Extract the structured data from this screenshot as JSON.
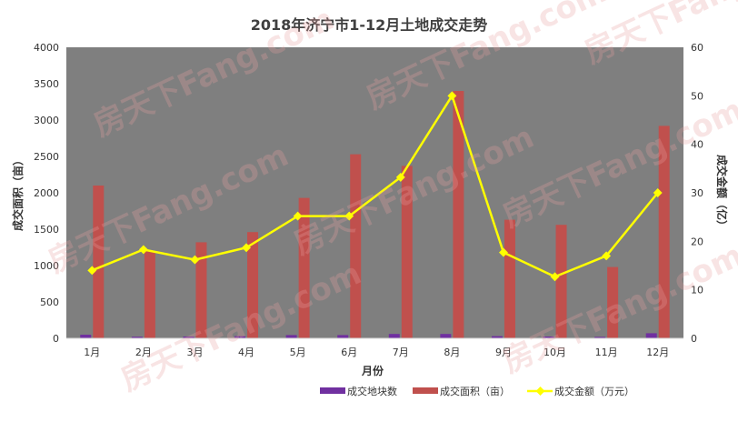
{
  "chart_data": {
    "type": "bar",
    "title": "2018年济宁市1-12月土地成交走势",
    "xlabel": "月份",
    "ylabel": "成交面积（亩）",
    "y2label": "成交金额（亿）",
    "categories": [
      "1月",
      "2月",
      "3月",
      "4月",
      "5月",
      "6月",
      "7月",
      "8月",
      "9月",
      "10月",
      "11月",
      "12月"
    ],
    "ylim": [
      0,
      4000
    ],
    "yticks": [
      0,
      500,
      1000,
      1500,
      2000,
      2500,
      3000,
      3500,
      4000
    ],
    "y2lim": [
      0,
      60
    ],
    "y2ticks": [
      0,
      10,
      20,
      30,
      40,
      50,
      60
    ],
    "grid": false,
    "legend_position": "bottom",
    "series": [
      {
        "name": "成交地块数",
        "type": "bar",
        "axis": "left",
        "color": "#7030a0",
        "values": [
          50,
          22,
          25,
          30,
          45,
          45,
          60,
          60,
          30,
          25,
          20,
          70
        ]
      },
      {
        "name": "成交面积（亩）",
        "type": "bar",
        "axis": "left",
        "color": "#c0504d",
        "values": [
          2100,
          1200,
          1320,
          1460,
          1930,
          2530,
          2370,
          3400,
          1630,
          1560,
          980,
          2920
        ]
      },
      {
        "name": "成交金额（万元）",
        "type": "line",
        "axis": "right",
        "color": "#ffff00",
        "values": [
          14,
          18.3,
          16.2,
          18.7,
          25.2,
          25.2,
          33.2,
          50,
          17.7,
          12.7,
          17,
          30
        ]
      }
    ],
    "colors": {
      "plot_background": "#7f7f7f",
      "page_background": "#ffffff"
    }
  },
  "watermark_text": "房天下Fang.com"
}
